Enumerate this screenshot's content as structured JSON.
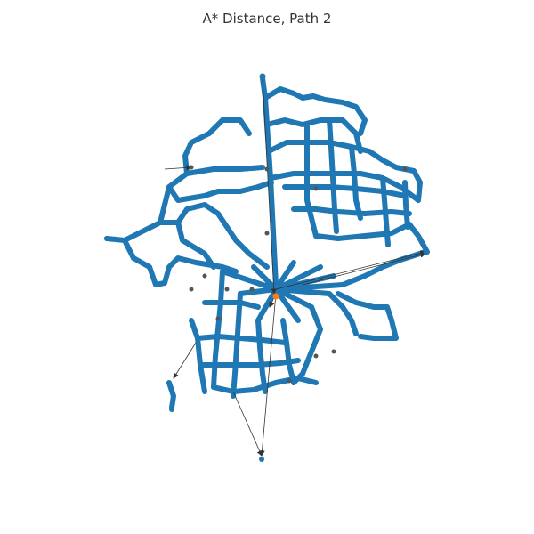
{
  "figure": {
    "title": "A* Distance, Path 2"
  },
  "colors": {
    "background": "#ffffff",
    "node": "#1f77b4",
    "node_stroke": "#1f77b4",
    "edge": "#1f77b4",
    "highlight_node": "#ff7f0e",
    "arrow": "#333333",
    "marker": "#555555"
  },
  "legend": []
}
